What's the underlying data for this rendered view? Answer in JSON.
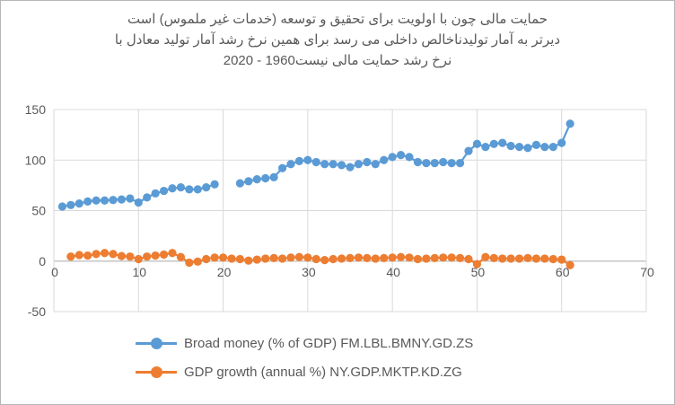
{
  "frame": {
    "background": "#ffffff",
    "border_color": "#b7b7b7"
  },
  "title": {
    "color": "#595959",
    "line1": "حمایت مالی  چون با اولویت برای تحقیق و توسعه (خدمات غیر ملموس) است",
    "line2": "دیرتر به آمار تولیدناخالص داخلی می رسد برای همین نرخ رشد آمار تولید معادل با",
    "line3": "نرخ رشد حمایت مالی نیست1960 - 2020"
  },
  "chart_data": {
    "type": "line",
    "subtype": "line-with-markers",
    "title": "حمایت مالی  چون با اولویت برای تحقیق و توسعه (خدمات غیر ملموس) است دیرتر به آمار تولیدناخالص داخلی می رسد برای همین نرخ رشد آمار تولید معادل با نرخ رشد حمایت مالی نیست1960 - 2020",
    "xlabel": "",
    "ylabel": "",
    "xlim": [
      0,
      70
    ],
    "ylim": [
      -50,
      150
    ],
    "x_ticks": [
      0,
      10,
      20,
      30,
      40,
      50,
      60,
      70
    ],
    "y_ticks": [
      -50,
      0,
      50,
      100,
      150
    ],
    "grid": true,
    "grid_color": "#d9d9d9",
    "axis_line_color": "#c6c6c6",
    "tick_label_color": "#595959",
    "legend_position": "bottom",
    "x": [
      1,
      2,
      3,
      4,
      5,
      6,
      7,
      8,
      9,
      10,
      11,
      12,
      13,
      14,
      15,
      16,
      17,
      18,
      19,
      20,
      21,
      22,
      23,
      24,
      25,
      26,
      27,
      28,
      29,
      30,
      31,
      32,
      33,
      34,
      35,
      36,
      37,
      38,
      39,
      40,
      41,
      42,
      43,
      44,
      45,
      46,
      47,
      48,
      49,
      50,
      51,
      52,
      53,
      54,
      55,
      56,
      57,
      58,
      59,
      60,
      61
    ],
    "series": [
      {
        "name": "Broad money (% of GDP) FM.LBL.BMNY.GD.ZS",
        "color": "#5b9bd5",
        "values": [
          54,
          55.5,
          57,
          59,
          60,
          60,
          60.5,
          61,
          62,
          58,
          63,
          67,
          69.5,
          72,
          73,
          71,
          71,
          73,
          76,
          null,
          null,
          77,
          79,
          81,
          82,
          83,
          92,
          96,
          99,
          100,
          98,
          96,
          96,
          95,
          93,
          96,
          98,
          96,
          100,
          103,
          105,
          103,
          98,
          97,
          97,
          98,
          97,
          97,
          109,
          116,
          113,
          116,
          117,
          114,
          113,
          112,
          115,
          113,
          113,
          117,
          136
        ]
      },
      {
        "name": "GDP growth (annual %) NY.GDP.MKTP.KD.ZG",
        "color": "#ed7d31",
        "values": [
          null,
          4.5,
          6,
          5.5,
          7,
          8,
          7,
          5,
          4.5,
          2,
          4.5,
          5.5,
          6.5,
          8,
          4,
          -1.5,
          -0.5,
          2,
          3.5,
          3.5,
          2.5,
          2,
          0.5,
          1.5,
          2.5,
          3,
          2.5,
          3.5,
          4,
          3.5,
          2,
          1,
          2,
          2.5,
          3,
          3.5,
          3,
          2.5,
          3,
          3.5,
          4,
          3.5,
          2,
          2.5,
          3,
          3.5,
          3.5,
          3,
          2,
          -3,
          4,
          3,
          2.5,
          2.5,
          2.5,
          3,
          2.5,
          2.5,
          2,
          1.5,
          -4
        ]
      }
    ]
  }
}
